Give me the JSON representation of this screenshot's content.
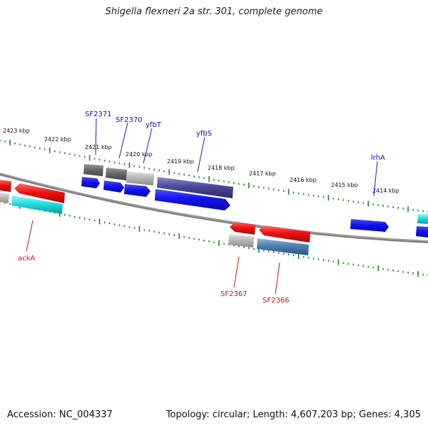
{
  "title": "Shigella flexneri 2a str. 301, complete genome",
  "footer": {
    "accession_label": "Accession:",
    "accession": "NC_004337",
    "topology_label": "Topology:",
    "topology": "circular",
    "length_label": "Length:",
    "length": "4,607,203 bp",
    "genes_label": "Genes:",
    "genes": "4,305"
  },
  "ticks": [
    "2423 kbp",
    "2422 kbp",
    "2421 kbp",
    "2420 kbp",
    "2419 kbp",
    "2418 kbp",
    "2417 kbp",
    "2416 kbp",
    "2415 kbp",
    "2414 kbp"
  ],
  "gene_labels_top": [
    "SF2371",
    "SF2370",
    "yfbT",
    "yfbS",
    "lrhA"
  ],
  "gene_labels_bottom": [
    "ackA",
    "SF2367",
    "SF2366"
  ],
  "colors": {
    "backbone": "#7f7f7f",
    "tick": "#1a8a1a",
    "forward": "#1111ee",
    "reverse": "#ee1111",
    "cyan": "#22dddd",
    "gray_dark": "#6a6a6a",
    "gray_light": "#b8b8b8",
    "slate": "#4a4a9a",
    "steel": "#4a7fb0",
    "top_label": "#1010c0",
    "bottom_label": "#cc1010"
  }
}
